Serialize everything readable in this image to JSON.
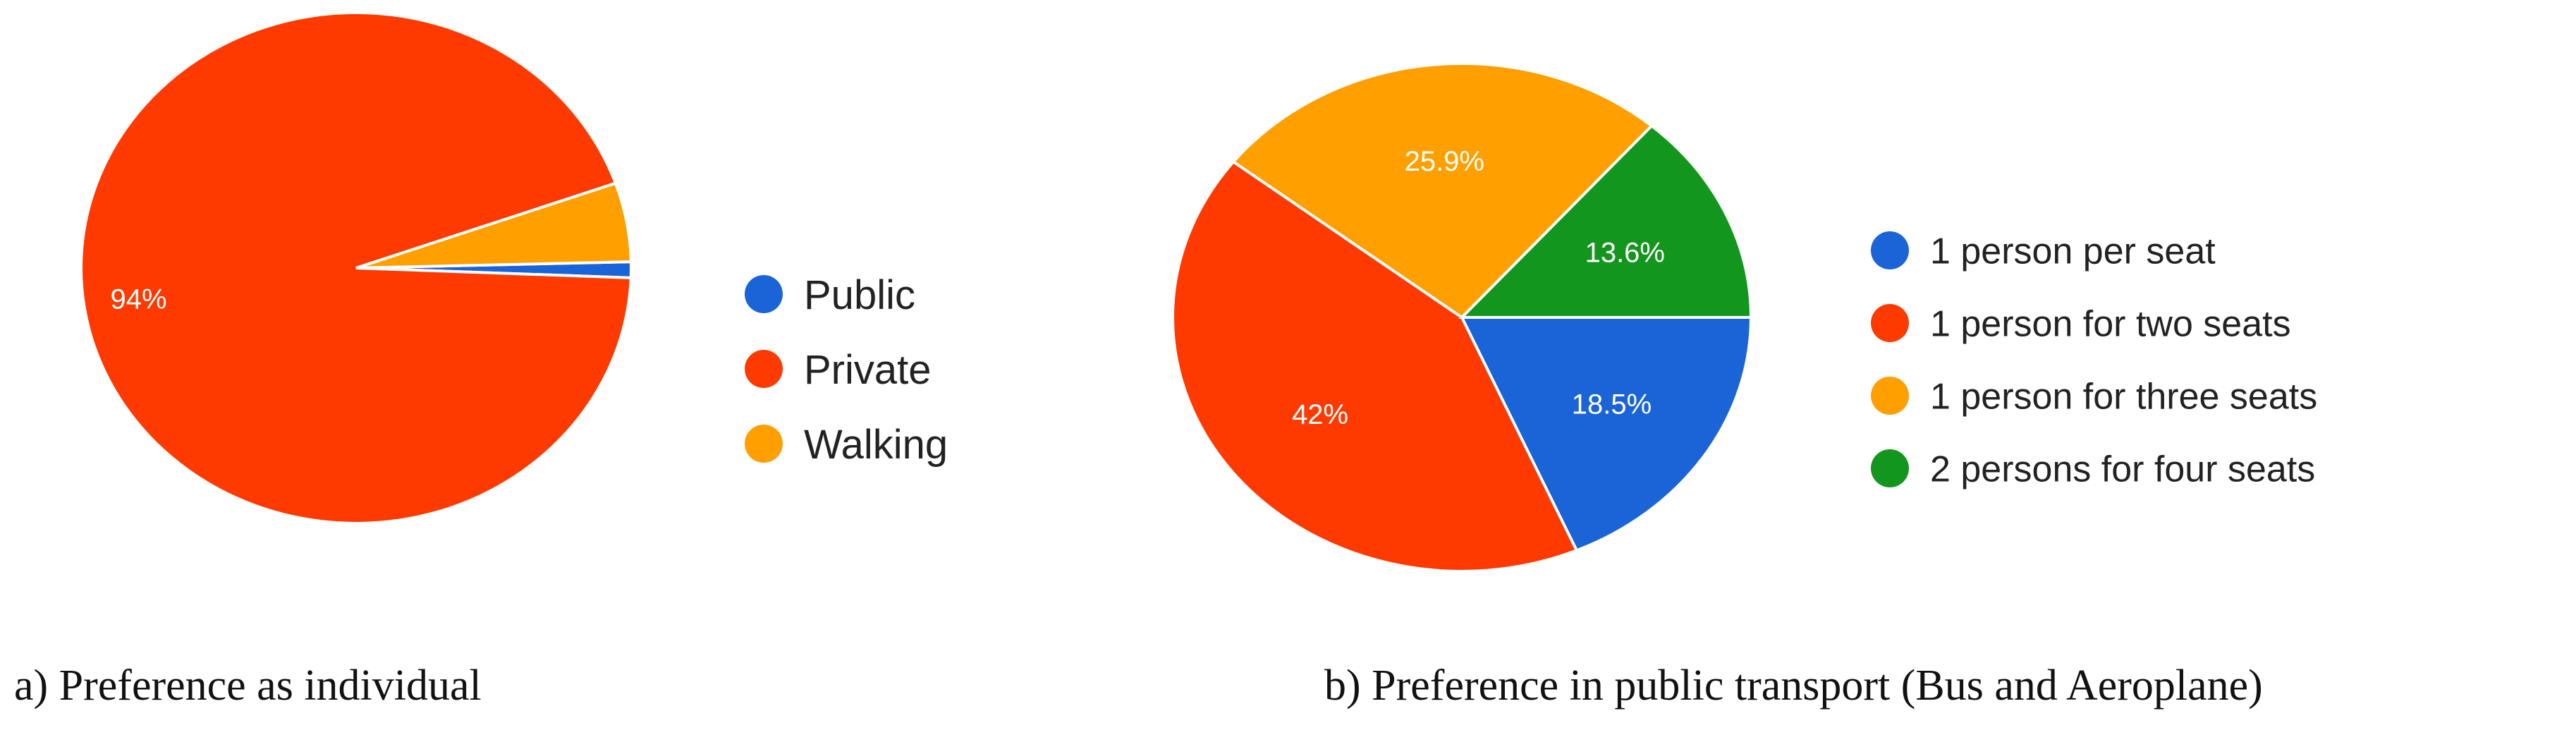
{
  "chart_data": [
    {
      "type": "pie",
      "caption": "a) Preference as individual",
      "labels": [
        "Public",
        "Private",
        "Walking"
      ],
      "values": [
        1,
        94,
        5
      ],
      "colors": [
        "#1a64d8",
        "#ff3a00",
        "#ff9f00"
      ],
      "slice_labels": [
        "",
        "94%",
        ""
      ],
      "legend": "right"
    },
    {
      "type": "pie",
      "caption": "b) Preference in public transport (Bus and Aeroplane)",
      "labels": [
        "1 person per seat",
        "1 person for two seats",
        "1 person for three seats",
        "2 persons for four seats"
      ],
      "values": [
        18.5,
        42,
        25.9,
        13.6
      ],
      "colors": [
        "#1a64d8",
        "#ff3a00",
        "#ff9f00",
        "#13961d"
      ],
      "slice_labels": [
        "18.5%",
        "42%",
        "25.9%",
        "13.6%"
      ],
      "legend": "right"
    }
  ]
}
